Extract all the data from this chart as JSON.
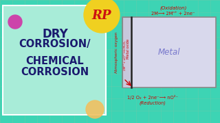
{
  "bg_color": "#3dd4b4",
  "left_panel_bg": "#a8ecd8",
  "left_panel_border": "#ffffff",
  "title1": "DRY",
  "title2": "CORROSION/",
  "title3": "CHEMICAL",
  "title4": "CORROSION",
  "title_color": "#1a1a6e",
  "oxidation_label": "(Oxidation)",
  "oxidation_eq": "2M⟶ 2Mⁿ⁺ + 2ne⁻",
  "reduction_eq": "1/2 O₂ + 2ne⁻⟶ nO²⁻",
  "reduction_label": "(Reduction)",
  "atm_oxygen": "Atmospheric oxygen",
  "metal_oxide": "Metal oxide",
  "metal_oxide_eq": "2Mⁿ⁺+ nO²⁻⟶ M₂Oₙ",
  "metal_label": "Metal",
  "eq_color": "#cc0000",
  "metal_label_color": "#7878cc",
  "rp_circle_color": "#f0d020",
  "rp_text_color": "#cc1111",
  "sphere_pink": "#cc44aa",
  "sphere_yellow": "#f0c060",
  "grid_color": "#70c8a8",
  "box_face": "#d8d8ec",
  "oxide_face": "#c8c8dc",
  "box_edge": "#888888"
}
